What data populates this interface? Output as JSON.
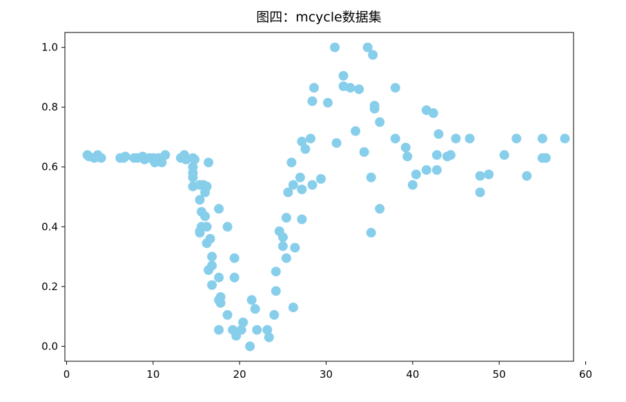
{
  "chart_data": {
    "type": "scatter",
    "title": "图四：mcycle数据集",
    "xlabel": "",
    "ylabel": "",
    "xlim": [
      -0.2,
      58.6
    ],
    "ylim": [
      -0.05,
      1.05
    ],
    "xticks": [
      0,
      10,
      20,
      30,
      40,
      50,
      60
    ],
    "xtick_labels": [
      "0",
      "10",
      "20",
      "30",
      "40",
      "50",
      "60"
    ],
    "yticks": [
      0.0,
      0.2,
      0.4,
      0.6,
      0.8,
      1.0
    ],
    "ytick_labels": [
      "0.0",
      "0.2",
      "0.4",
      "0.6",
      "0.8",
      "1.0"
    ],
    "grid": false,
    "point_color": "#87ceeb",
    "points": [
      {
        "x": 2.4,
        "y": 0.64
      },
      {
        "x": 2.6,
        "y": 0.635
      },
      {
        "x": 3.2,
        "y": 0.63
      },
      {
        "x": 3.6,
        "y": 0.64
      },
      {
        "x": 4.0,
        "y": 0.63
      },
      {
        "x": 6.2,
        "y": 0.63
      },
      {
        "x": 6.6,
        "y": 0.63
      },
      {
        "x": 6.8,
        "y": 0.635
      },
      {
        "x": 7.8,
        "y": 0.63
      },
      {
        "x": 8.2,
        "y": 0.63
      },
      {
        "x": 8.8,
        "y": 0.635
      },
      {
        "x": 9.0,
        "y": 0.625
      },
      {
        "x": 9.6,
        "y": 0.63
      },
      {
        "x": 10.0,
        "y": 0.63
      },
      {
        "x": 10.2,
        "y": 0.615
      },
      {
        "x": 10.6,
        "y": 0.63
      },
      {
        "x": 11.0,
        "y": 0.615
      },
      {
        "x": 11.4,
        "y": 0.64
      },
      {
        "x": 13.2,
        "y": 0.63
      },
      {
        "x": 13.6,
        "y": 0.64
      },
      {
        "x": 13.8,
        "y": 0.625
      },
      {
        "x": 14.6,
        "y": 0.63
      },
      {
        "x": 14.6,
        "y": 0.6
      },
      {
        "x": 14.6,
        "y": 0.58
      },
      {
        "x": 14.6,
        "y": 0.565
      },
      {
        "x": 14.6,
        "y": 0.535
      },
      {
        "x": 14.8,
        "y": 0.625
      },
      {
        "x": 15.4,
        "y": 0.49
      },
      {
        "x": 15.4,
        "y": 0.54
      },
      {
        "x": 15.4,
        "y": 0.38
      },
      {
        "x": 15.4,
        "y": 0.385
      },
      {
        "x": 15.6,
        "y": 0.45
      },
      {
        "x": 15.6,
        "y": 0.4
      },
      {
        "x": 15.8,
        "y": 0.54
      },
      {
        "x": 16.0,
        "y": 0.435
      },
      {
        "x": 16.0,
        "y": 0.515
      },
      {
        "x": 16.2,
        "y": 0.4
      },
      {
        "x": 16.2,
        "y": 0.345
      },
      {
        "x": 16.2,
        "y": 0.535
      },
      {
        "x": 16.4,
        "y": 0.615
      },
      {
        "x": 16.4,
        "y": 0.255
      },
      {
        "x": 16.6,
        "y": 0.36
      },
      {
        "x": 16.8,
        "y": 0.3
      },
      {
        "x": 16.8,
        "y": 0.27
      },
      {
        "x": 16.8,
        "y": 0.205
      },
      {
        "x": 17.6,
        "y": 0.23
      },
      {
        "x": 17.6,
        "y": 0.155
      },
      {
        "x": 17.6,
        "y": 0.46
      },
      {
        "x": 17.6,
        "y": 0.055
      },
      {
        "x": 17.8,
        "y": 0.165
      },
      {
        "x": 17.8,
        "y": 0.145
      },
      {
        "x": 18.6,
        "y": 0.4
      },
      {
        "x": 18.6,
        "y": 0.105
      },
      {
        "x": 19.2,
        "y": 0.055
      },
      {
        "x": 19.4,
        "y": 0.295
      },
      {
        "x": 19.4,
        "y": 0.23
      },
      {
        "x": 19.6,
        "y": 0.035
      },
      {
        "x": 20.2,
        "y": 0.055
      },
      {
        "x": 20.4,
        "y": 0.08
      },
      {
        "x": 21.2,
        "y": 0.0
      },
      {
        "x": 21.4,
        "y": 0.155
      },
      {
        "x": 21.8,
        "y": 0.125
      },
      {
        "x": 22.0,
        "y": 0.055
      },
      {
        "x": 23.2,
        "y": 0.055
      },
      {
        "x": 23.4,
        "y": 0.03
      },
      {
        "x": 24.0,
        "y": 0.105
      },
      {
        "x": 24.2,
        "y": 0.25
      },
      {
        "x": 24.2,
        "y": 0.185
      },
      {
        "x": 24.6,
        "y": 0.385
      },
      {
        "x": 25.0,
        "y": 0.365
      },
      {
        "x": 25.0,
        "y": 0.335
      },
      {
        "x": 25.4,
        "y": 0.43
      },
      {
        "x": 25.4,
        "y": 0.295
      },
      {
        "x": 25.6,
        "y": 0.515
      },
      {
        "x": 26.0,
        "y": 0.615
      },
      {
        "x": 26.2,
        "y": 0.54
      },
      {
        "x": 26.2,
        "y": 0.13
      },
      {
        "x": 26.4,
        "y": 0.33
      },
      {
        "x": 27.0,
        "y": 0.565
      },
      {
        "x": 27.2,
        "y": 0.525
      },
      {
        "x": 27.2,
        "y": 0.425
      },
      {
        "x": 27.2,
        "y": 0.685
      },
      {
        "x": 27.6,
        "y": 0.66
      },
      {
        "x": 28.2,
        "y": 0.695
      },
      {
        "x": 28.4,
        "y": 0.82
      },
      {
        "x": 28.4,
        "y": 0.54
      },
      {
        "x": 28.6,
        "y": 0.865
      },
      {
        "x": 29.4,
        "y": 0.56
      },
      {
        "x": 30.2,
        "y": 0.815
      },
      {
        "x": 31.0,
        "y": 1.0
      },
      {
        "x": 31.2,
        "y": 0.68
      },
      {
        "x": 32.0,
        "y": 0.905
      },
      {
        "x": 32.0,
        "y": 0.87
      },
      {
        "x": 32.8,
        "y": 0.865
      },
      {
        "x": 33.4,
        "y": 0.72
      },
      {
        "x": 33.8,
        "y": 0.86
      },
      {
        "x": 34.4,
        "y": 0.65
      },
      {
        "x": 34.8,
        "y": 1.0
      },
      {
        "x": 35.2,
        "y": 0.565
      },
      {
        "x": 35.2,
        "y": 0.38
      },
      {
        "x": 35.4,
        "y": 0.975
      },
      {
        "x": 35.6,
        "y": 0.805
      },
      {
        "x": 35.6,
        "y": 0.795
      },
      {
        "x": 36.2,
        "y": 0.75
      },
      {
        "x": 36.2,
        "y": 0.46
      },
      {
        "x": 38.0,
        "y": 0.865
      },
      {
        "x": 38.0,
        "y": 0.695
      },
      {
        "x": 39.2,
        "y": 0.665
      },
      {
        "x": 39.4,
        "y": 0.635
      },
      {
        "x": 40.0,
        "y": 0.54
      },
      {
        "x": 40.4,
        "y": 0.575
      },
      {
        "x": 41.6,
        "y": 0.79
      },
      {
        "x": 41.6,
        "y": 0.59
      },
      {
        "x": 42.4,
        "y": 0.78
      },
      {
        "x": 42.8,
        "y": 0.64
      },
      {
        "x": 42.8,
        "y": 0.59
      },
      {
        "x": 43.0,
        "y": 0.71
      },
      {
        "x": 44.0,
        "y": 0.635
      },
      {
        "x": 44.4,
        "y": 0.64
      },
      {
        "x": 45.0,
        "y": 0.695
      },
      {
        "x": 46.6,
        "y": 0.695
      },
      {
        "x": 47.8,
        "y": 0.57
      },
      {
        "x": 47.8,
        "y": 0.515
      },
      {
        "x": 48.8,
        "y": 0.575
      },
      {
        "x": 50.6,
        "y": 0.64
      },
      {
        "x": 52.0,
        "y": 0.695
      },
      {
        "x": 53.2,
        "y": 0.57
      },
      {
        "x": 55.0,
        "y": 0.695
      },
      {
        "x": 55.0,
        "y": 0.63
      },
      {
        "x": 55.4,
        "y": 0.63
      },
      {
        "x": 57.6,
        "y": 0.695
      }
    ]
  }
}
